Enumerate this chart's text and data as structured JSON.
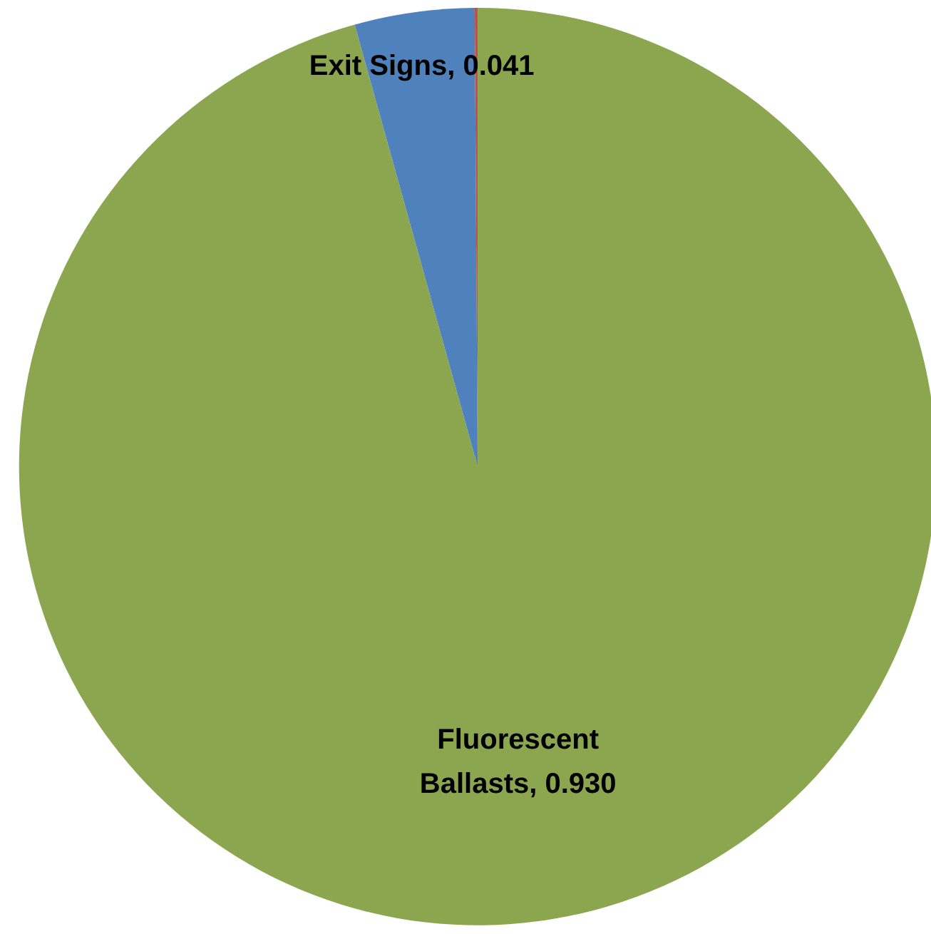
{
  "chart_data": {
    "type": "pie",
    "categories": [
      "Fluorescent Ballasts",
      "Exit Signs",
      null
    ],
    "values": [
      0.93,
      0.041,
      0.001
    ],
    "colors": [
      "#8ba64f",
      "#4f81bd",
      "#c0504d"
    ],
    "value_labels": [
      "0.930",
      "0.041",
      null
    ]
  }
}
